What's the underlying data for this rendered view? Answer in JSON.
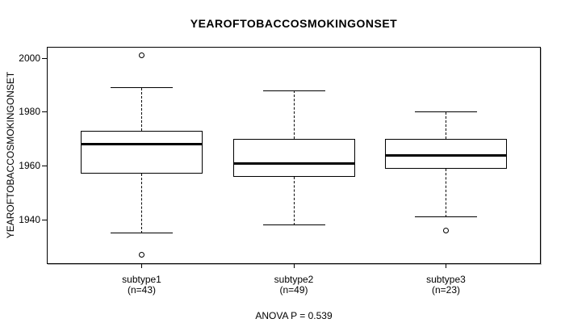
{
  "figure": {
    "background": "#ffffff",
    "line_color": "#000000",
    "box_fill": "#ffffff"
  },
  "chart_data": {
    "type": "boxplot",
    "title": "YEAROFTOBACCOSMOKINGONSET",
    "ylabel": "YEAROFTOBACCOSMOKINGONSET",
    "xlabel": "",
    "annotation": "ANOVA P = 0.539",
    "grid": false,
    "ylim": [
      1923.5,
      2004.2
    ],
    "yticks": [
      1940,
      1960,
      1980,
      2000
    ],
    "groups": [
      {
        "label": "subtype1",
        "count_label": "(n=43)",
        "n": 43,
        "whisker_low": 1935,
        "q1": 1957,
        "median": 1968,
        "q3": 1973,
        "whisker_high": 1989,
        "outliers": [
          2001,
          1927
        ]
      },
      {
        "label": "subtype2",
        "count_label": "(n=49)",
        "n": 49,
        "whisker_low": 1938,
        "q1": 1956,
        "median": 1961,
        "q3": 1970,
        "whisker_high": 1988,
        "outliers": []
      },
      {
        "label": "subtype3",
        "count_label": "(n=23)",
        "n": 23,
        "whisker_low": 1941,
        "q1": 1959,
        "median": 1964,
        "q3": 1970,
        "whisker_high": 1980,
        "outliers": [
          1936
        ]
      }
    ]
  }
}
